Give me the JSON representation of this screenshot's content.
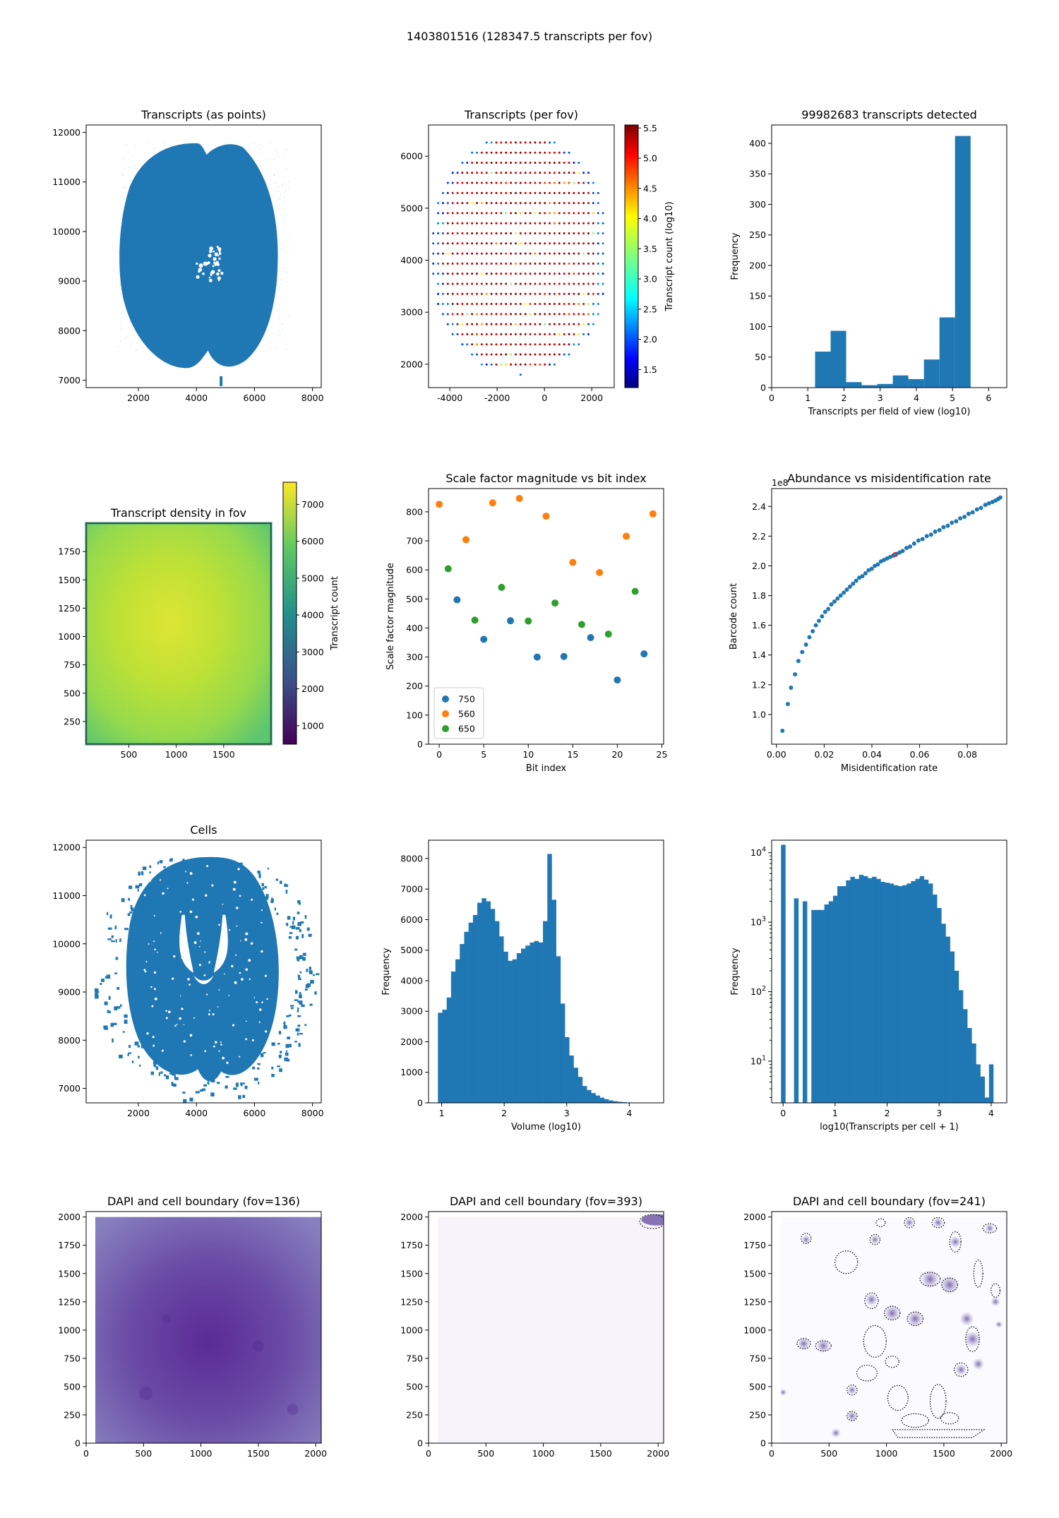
{
  "figure": {
    "suptitle": "1403801516 (128347.5 transcripts per fov)"
  },
  "chart_data": [
    {
      "id": "transcripts-points",
      "type": "scatter",
      "title": "Transcripts (as points)",
      "xlabel": "",
      "ylabel": "",
      "xlim": [
        200,
        8300
      ],
      "ylim": [
        6850,
        12150
      ],
      "xticks": [
        2000,
        4000,
        6000,
        8000
      ],
      "yticks": [
        7000,
        8000,
        9000,
        10000,
        11000,
        12000
      ],
      "color": "#1f77b4",
      "description_shape": "dense blob of points covering the tissue section"
    },
    {
      "id": "transcripts-per-fov",
      "type": "scatter",
      "title": "Transcripts (per fov)",
      "xlabel": "",
      "ylabel": "",
      "xlim": [
        -4900,
        2950
      ],
      "ylim": [
        1550,
        6600
      ],
      "xticks": [
        -4000,
        -2000,
        0,
        2000
      ],
      "yticks": [
        2000,
        3000,
        4000,
        5000,
        6000
      ],
      "colorbar": {
        "label": "Transcript count (log10)",
        "range": [
          1.2,
          5.55
        ],
        "ticks": [
          "1.5",
          "2.0",
          "2.5",
          "3.0",
          "3.5",
          "4.0",
          "4.5",
          "5.0",
          "5.5"
        ],
        "colormap": "jet"
      },
      "grid": {
        "x_start": -4700,
        "x_end": 2650,
        "step_x": 205,
        "y_start": 1800,
        "y_end": 6450,
        "step_y": 194
      }
    },
    {
      "id": "transcripts-histogram",
      "type": "bar",
      "title": "99982683 transcripts detected",
      "xlabel": "Transcripts per field of view (log10)",
      "ylabel": "Frequency",
      "xlim": [
        0,
        6.5
      ],
      "ylim": [
        0,
        430
      ],
      "xticks": [
        0,
        1,
        2,
        3,
        4,
        5,
        6
      ],
      "yticks": [
        0,
        50,
        100,
        150,
        200,
        250,
        300,
        350,
        400
      ],
      "bin_edges": [
        1.2,
        1.63,
        2.06,
        2.49,
        2.92,
        3.35,
        3.78,
        4.21,
        4.64,
        5.07,
        5.5
      ],
      "values": [
        59,
        93,
        9,
        4,
        6,
        20,
        14,
        46,
        115,
        412
      ],
      "color": "#1f77b4"
    },
    {
      "id": "density-in-fov",
      "type": "heatmap",
      "title": "Transcript density in fov",
      "xlabel": "",
      "ylabel": "",
      "xlim": [
        50,
        2000
      ],
      "ylim": [
        50,
        2000
      ],
      "xticks": [
        500,
        1000,
        1500
      ],
      "yticks": [
        250,
        500,
        750,
        1000,
        1250,
        1500,
        1750
      ],
      "colorbar": {
        "label": "Transcript count",
        "range": [
          500,
          7600
        ],
        "ticks": [
          "1000",
          "2000",
          "3000",
          "4000",
          "5000",
          "6000",
          "7000"
        ],
        "colormap": "viridis"
      }
    },
    {
      "id": "scale-factor",
      "type": "scatter",
      "title": "Scale factor magnitude vs bit index",
      "xlabel": "Bit index",
      "ylabel": "Scale factor magnitude",
      "xlim": [
        -1.2,
        25.2
      ],
      "ylim": [
        0,
        880
      ],
      "xticks": [
        0,
        5,
        10,
        15,
        20,
        25
      ],
      "yticks": [
        0,
        100,
        200,
        300,
        400,
        500,
        600,
        700,
        800
      ],
      "legend_position": "lower-left",
      "series": [
        {
          "name": "750",
          "color": "#1f77b4",
          "x": [
            2,
            5,
            8,
            11,
            14,
            17,
            20,
            23
          ],
          "y": [
            497,
            361,
            425,
            300,
            302,
            367,
            221,
            311
          ]
        },
        {
          "name": "560",
          "color": "#ff7f0e",
          "x": [
            0,
            3,
            6,
            9,
            12,
            15,
            18,
            21,
            24
          ],
          "y": [
            826,
            704,
            831,
            846,
            785,
            626,
            591,
            716,
            793
          ]
        },
        {
          "name": "650",
          "color": "#2ca02c",
          "x": [
            1,
            4,
            7,
            10,
            13,
            16,
            19,
            22
          ],
          "y": [
            604,
            427,
            540,
            424,
            486,
            412,
            379,
            526
          ]
        }
      ]
    },
    {
      "id": "abundance-misid",
      "type": "scatter",
      "title": "Abundance vs misidentification rate",
      "xlabel": "Misidentification rate",
      "ylabel": "Barcode count",
      "offset_label": "1e8",
      "xlim": [
        -0.002,
        0.0965
      ],
      "ylim": [
        0.8,
        2.52
      ],
      "xticks": [
        "0.00",
        "0.02",
        "0.04",
        "0.06",
        "0.08"
      ],
      "xtick_values": [
        0,
        0.02,
        0.04,
        0.06,
        0.08
      ],
      "yticks": [
        "1.0",
        "1.2",
        "1.4",
        "1.6",
        "1.8",
        "2.0",
        "2.2",
        "2.4"
      ],
      "ytick_values": [
        1.0,
        1.2,
        1.4,
        1.6,
        1.8,
        2.0,
        2.2,
        2.4
      ],
      "x": [
        0.0025,
        0.0048,
        0.0061,
        0.0078,
        0.0092,
        0.0108,
        0.0124,
        0.0138,
        0.0152,
        0.0165,
        0.0178,
        0.0191,
        0.0204,
        0.0217,
        0.023,
        0.0243,
        0.0256,
        0.0269,
        0.0282,
        0.0295,
        0.0308,
        0.0321,
        0.0334,
        0.0347,
        0.036,
        0.0373,
        0.0386,
        0.0399,
        0.0412,
        0.0425,
        0.0438,
        0.0451,
        0.0464,
        0.0477,
        0.049,
        0.0503,
        0.0516,
        0.0529,
        0.0545,
        0.056,
        0.0577,
        0.0595,
        0.0612,
        0.063,
        0.0648,
        0.0665,
        0.0683,
        0.07,
        0.0718,
        0.0735,
        0.0753,
        0.077,
        0.0788,
        0.0805,
        0.0822,
        0.084,
        0.0857,
        0.0875,
        0.089,
        0.0905,
        0.0918,
        0.0929,
        0.0938
      ],
      "y": [
        0.89,
        1.07,
        1.18,
        1.27,
        1.36,
        1.42,
        1.47,
        1.52,
        1.56,
        1.6,
        1.63,
        1.66,
        1.69,
        1.71,
        1.74,
        1.76,
        1.78,
        1.8,
        1.82,
        1.84,
        1.86,
        1.88,
        1.9,
        1.92,
        1.93,
        1.95,
        1.97,
        1.98,
        2.0,
        2.01,
        2.03,
        2.04,
        2.05,
        2.06,
        2.07,
        2.08,
        2.09,
        2.1,
        2.12,
        2.13,
        2.15,
        2.17,
        2.18,
        2.2,
        2.21,
        2.23,
        2.24,
        2.26,
        2.27,
        2.29,
        2.3,
        2.32,
        2.33,
        2.35,
        2.36,
        2.38,
        2.39,
        2.41,
        2.42,
        2.43,
        2.44,
        2.45,
        2.46
      ],
      "highlight": {
        "x": 0.0497,
        "y": 2.075,
        "color": "#d62728"
      }
    },
    {
      "id": "cells",
      "type": "scatter",
      "title": "Cells",
      "xlabel": "",
      "ylabel": "",
      "xlim": [
        200,
        8300
      ],
      "ylim": [
        6700,
        12150
      ],
      "xticks": [
        2000,
        4000,
        6000,
        8000
      ],
      "yticks": [
        7000,
        8000,
        9000,
        10000,
        11000,
        12000
      ],
      "color": "#1f77b4"
    },
    {
      "id": "volume-histogram",
      "type": "bar",
      "title": "",
      "xlabel": "Volume (log10)",
      "ylabel": "Frequency",
      "xlim": [
        0.79,
        4.55
      ],
      "ylim": [
        0,
        8600
      ],
      "xticks": [
        1,
        2,
        3,
        4
      ],
      "yticks": [
        0,
        1000,
        2000,
        3000,
        4000,
        5000,
        6000,
        7000,
        8000
      ],
      "bin_start": 0.94,
      "bin_width": 0.07,
      "values": [
        2950,
        3050,
        3450,
        4300,
        4700,
        5200,
        5600,
        5900,
        6150,
        6550,
        6700,
        6600,
        6350,
        5950,
        5450,
        4950,
        4650,
        4700,
        4900,
        5050,
        5150,
        5250,
        5300,
        5250,
        5950,
        8150,
        6650,
        4800,
        3250,
        2150,
        1550,
        1150,
        850,
        550,
        420,
        320,
        240,
        170,
        120,
        80,
        55,
        35,
        22,
        14,
        9,
        5,
        3,
        2,
        1
      ],
      "color": "#1f77b4"
    },
    {
      "id": "transcripts-per-cell",
      "type": "bar",
      "title": "",
      "xlabel": "log10(Transcripts per cell + 1)",
      "ylabel": "Frequency",
      "yscale": "log",
      "xlim": [
        -0.22,
        4.3
      ],
      "ylim_log10": [
        0.4,
        4.18
      ],
      "xticks": [
        0,
        1,
        2,
        3,
        4
      ],
      "yticks": [
        1,
        2,
        3,
        4
      ],
      "bin_start": -0.04,
      "bin_width": 0.0833,
      "values": [
        13000,
        0,
        0,
        2200,
        0,
        2000,
        0,
        1500,
        1500,
        1500,
        1800,
        2000,
        2400,
        3300,
        3300,
        4000,
        4500,
        4200,
        4800,
        4600,
        4300,
        4500,
        4200,
        3800,
        3700,
        3600,
        3400,
        3300,
        3400,
        3600,
        3900,
        4200,
        4600,
        4100,
        3600,
        2500,
        1600,
        950,
        620,
        380,
        200,
        105,
        56,
        30,
        18,
        9,
        6,
        3,
        9
      ],
      "color": "#1f77b4"
    },
    {
      "id": "dapi-136",
      "type": "heatmap",
      "title": "DAPI and cell boundary (fov=136)",
      "xlabel": "",
      "ylabel": "",
      "xlim": [
        0,
        2048
      ],
      "ylim": [
        0,
        2048
      ],
      "xticks": [
        0,
        500,
        1000,
        1500,
        2000
      ],
      "yticks": [
        0,
        250,
        500,
        750,
        1000,
        1250,
        1500,
        1750,
        2000
      ],
      "colormap": "Purples"
    },
    {
      "id": "dapi-393",
      "type": "heatmap",
      "title": "DAPI and cell boundary (fov=393)",
      "xlabel": "",
      "ylabel": "",
      "xlim": [
        0,
        2048
      ],
      "ylim": [
        0,
        2048
      ],
      "xticks": [
        0,
        500,
        1000,
        1500,
        2000
      ],
      "yticks": [
        0,
        250,
        500,
        750,
        1000,
        1250,
        1500,
        1750,
        2000
      ],
      "colormap": "Purples"
    },
    {
      "id": "dapi-241",
      "type": "heatmap",
      "title": "DAPI and cell boundary (fov=241)",
      "xlabel": "",
      "ylabel": "",
      "xlim": [
        0,
        2048
      ],
      "ylim": [
        0,
        2048
      ],
      "xticks": [
        0,
        500,
        1000,
        1500,
        2000
      ],
      "yticks": [
        0,
        250,
        500,
        750,
        1000,
        1250,
        1500,
        1750,
        2000
      ],
      "colormap": "Purples"
    }
  ]
}
